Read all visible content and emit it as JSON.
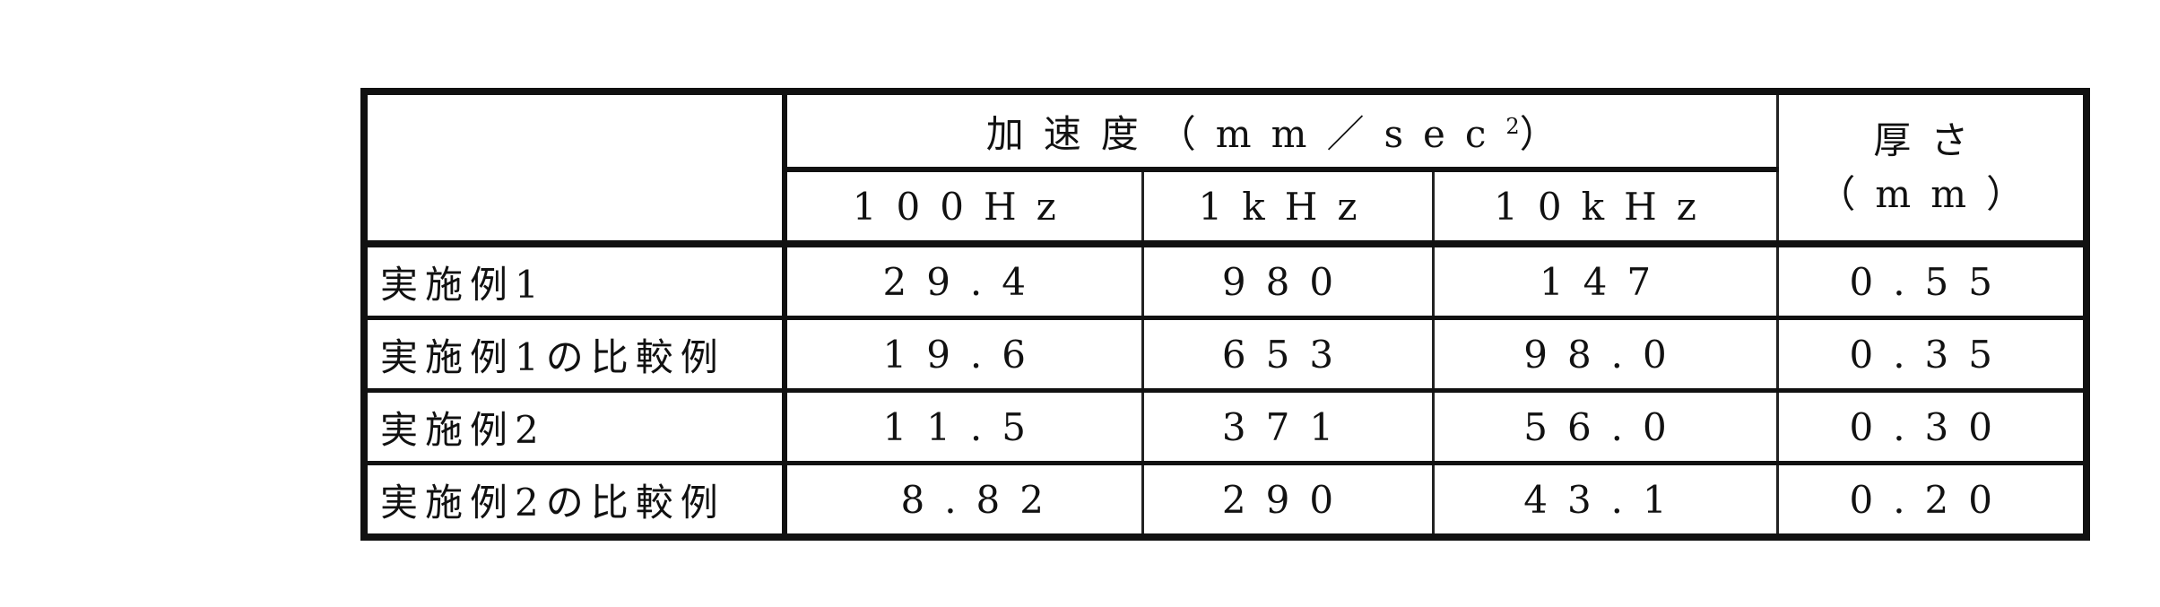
{
  "table": {
    "header": {
      "acceleration_label": "加速度（mm／sec",
      "acceleration_exp": "2",
      "acceleration_close": "）",
      "thickness_label": "厚さ",
      "thickness_unit": "（mm）",
      "frequencies": [
        "100Hz",
        "1kHz",
        "10kHz"
      ]
    },
    "rows": [
      {
        "label": "実施例1",
        "values": [
          "29.4",
          "980",
          "147"
        ],
        "thickness": "0.55"
      },
      {
        "label": "実施例1の比較例",
        "values": [
          "19.6",
          "653",
          "98.0"
        ],
        "thickness": "0.35"
      },
      {
        "label": "実施例2",
        "values": [
          "11.5",
          "371",
          "56.0"
        ],
        "thickness": "0.30"
      },
      {
        "label": "実施例2の比較例",
        "values": [
          "8.82",
          "290",
          "43.1"
        ],
        "thickness": "0.20"
      }
    ]
  }
}
